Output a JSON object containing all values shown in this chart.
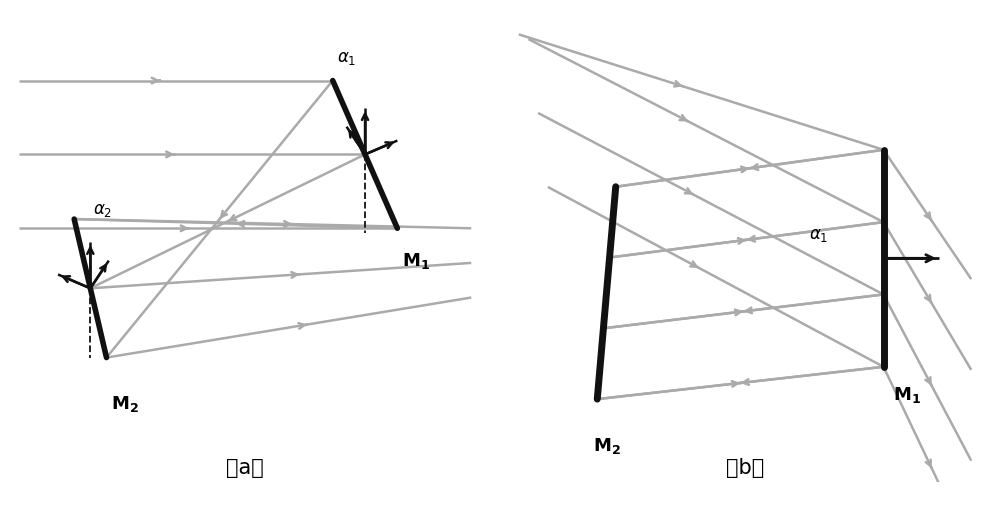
{
  "bg_color": "#ffffff",
  "ray_color": "#aaaaaa",
  "mirror_color": "#111111",
  "ray_lw": 1.8,
  "mirror_lw": 4.0,
  "arrow_ms": 10,
  "fig_width": 10.0,
  "fig_height": 5.13,
  "label_a": "（a）",
  "label_b": "（b）"
}
